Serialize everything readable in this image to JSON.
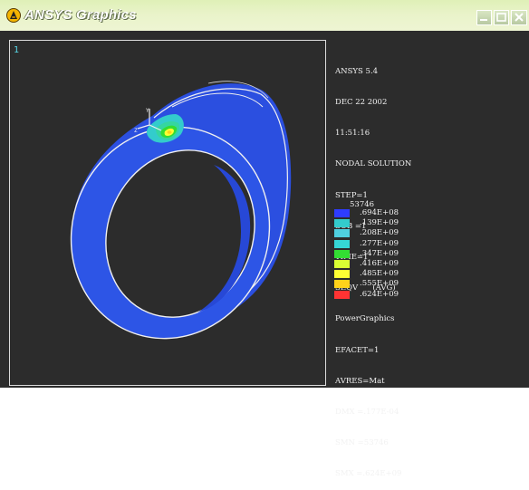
{
  "window": {
    "title": "ANSYS Graphics",
    "window_number": "1",
    "colors": {
      "titlebar": "#e3f1c0",
      "background": "#2c2c2c",
      "model": "#2b4fe0",
      "label_text": "#f2f2f2"
    }
  },
  "info_panel": {
    "lines": [
      "ANSYS 5.4",
      "DEC 22 2002",
      "11:51:16",
      "NODAL SOLUTION",
      "STEP=1",
      "SUB =1",
      "TIME=1",
      "SEQV      (AVG)",
      "PowerGraphics",
      "EFACET=1",
      "AVRES=Mat",
      "DMX =.177E-04",
      "SMN =53746",
      "SMX =.624E+09"
    ]
  },
  "legend": {
    "min_label": "53746",
    "items": [
      {
        "label": ".694E+08",
        "color": "#2e3cff"
      },
      {
        "label": ".139E+09",
        "color": "#33cccc"
      },
      {
        "label": ".208E+09",
        "color": "#4fd0e0"
      },
      {
        "label": ".277E+09",
        "color": "#35d6d6"
      },
      {
        "label": ".347E+09",
        "color": "#33dd33"
      },
      {
        "label": ".416E+09",
        "color": "#d9ff33"
      },
      {
        "label": ".485E+09",
        "color": "#ffff33"
      },
      {
        "label": ".555E+09",
        "color": "#ffd21a"
      },
      {
        "label": ".624E+09",
        "color": "#ff3333"
      }
    ]
  }
}
